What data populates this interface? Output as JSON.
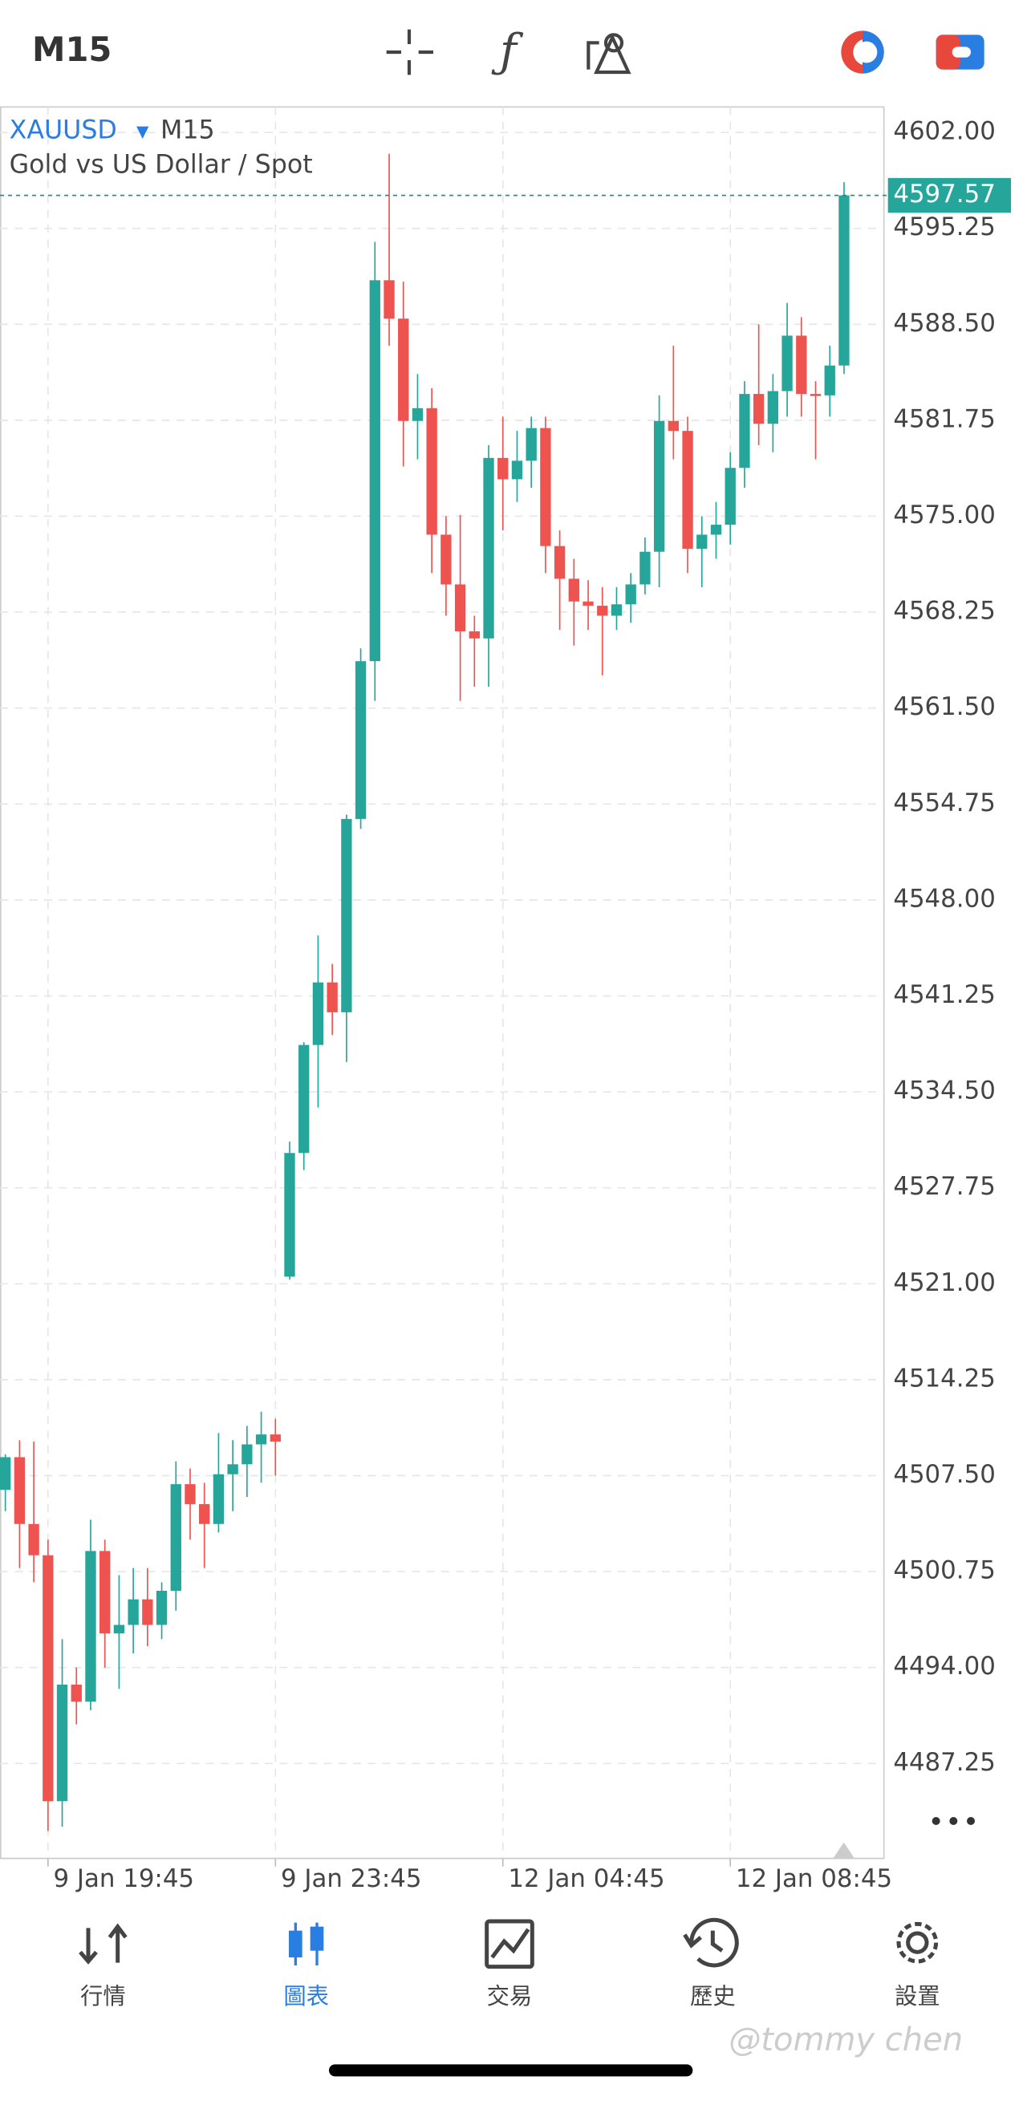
{
  "header": {
    "timeframe": "M15"
  },
  "chart_data": {
    "type": "candlestick",
    "title": "XAUUSD",
    "timeframe": "M15",
    "subtitle": "Gold vs US Dollar / Spot",
    "up_color": "#26a69a",
    "down_color": "#ef5350",
    "grid": true,
    "last_price": 4597.57,
    "ylim": [
      4480.57,
      4603.79
    ],
    "yticks": [
      {
        "value": 4602,
        "label": "4602.00"
      },
      {
        "value": 4595.25,
        "label": "4595.25"
      },
      {
        "value": 4588.5,
        "label": "4588.50"
      },
      {
        "value": 4581.75,
        "label": "4581.75"
      },
      {
        "value": 4575,
        "label": "4575.00"
      },
      {
        "value": 4568.25,
        "label": "4568.25"
      },
      {
        "value": 4561.5,
        "label": "4561.50"
      },
      {
        "value": 4554.75,
        "label": "4554.75"
      },
      {
        "value": 4548,
        "label": "4548.00"
      },
      {
        "value": 4541.25,
        "label": "4541.25"
      },
      {
        "value": 4534.5,
        "label": "4534.50"
      },
      {
        "value": 4527.75,
        "label": "4527.75"
      },
      {
        "value": 4521,
        "label": "4521.00"
      },
      {
        "value": 4514.25,
        "label": "4514.25"
      },
      {
        "value": 4507.5,
        "label": "4507.50"
      },
      {
        "value": 4500.75,
        "label": "4500.75"
      },
      {
        "value": 4494,
        "label": "4494.00"
      },
      {
        "value": 4487.25,
        "label": "4487.25"
      }
    ],
    "categories": [
      null,
      null,
      null,
      "9 Jan 19:45",
      null,
      null,
      null,
      null,
      null,
      null,
      null,
      null,
      null,
      null,
      null,
      null,
      null,
      null,
      null,
      "9 Jan 23:45",
      null,
      null,
      null,
      null,
      null,
      null,
      null,
      null,
      null,
      null,
      null,
      null,
      null,
      null,
      null,
      "12 Jan 04:45",
      null,
      null,
      null,
      null,
      null,
      null,
      null,
      null,
      null,
      null,
      null,
      null,
      null,
      null,
      null,
      "12 Jan 08:45",
      null,
      null,
      null,
      null,
      null,
      null,
      null,
      null
    ],
    "open": [
      4506.5,
      4508.8,
      4504.1,
      4501.9,
      4484.6,
      4492.8,
      4491.6,
      4502.2,
      4496.4,
      4497.0,
      4498.8,
      4497.0,
      4499.4,
      4506.9,
      4505.5,
      4504.1,
      4507.6,
      4508.3,
      4509.7,
      4510.4,
      4521.5,
      4530.2,
      4537.8,
      4542.2,
      4540.1,
      4553.7,
      4564.8,
      4591.6,
      4588.9,
      4581.7,
      4582.6,
      4573.7,
      4570.2,
      4566.9,
      4566.4,
      4579.1,
      4577.6,
      4578.9,
      4581.2,
      4572.9,
      4570.6,
      4569.0,
      4568.7,
      4568.0,
      4568.8,
      4570.2,
      4572.5,
      4581.7,
      4581.0,
      4572.7,
      4573.7,
      4574.4,
      4578.4,
      4583.6,
      4581.5,
      4583.8,
      4587.7,
      4583.6,
      4583.5,
      4585.6
    ],
    "high": [
      4509.0,
      4510.0,
      4509.9,
      4503.0,
      4496.0,
      4494.0,
      4504.4,
      4503.0,
      4500.5,
      4501.0,
      4501.0,
      4500.0,
      4508.5,
      4508.0,
      4507.0,
      4510.5,
      4510.0,
      4511.0,
      4512.0,
      4511.5,
      4531.0,
      4538.0,
      4545.5,
      4543.5,
      4554.0,
      4565.7,
      4594.3,
      4600.5,
      4591.5,
      4585.0,
      4584.0,
      4575.0,
      4575.1,
      4568.0,
      4580.0,
      4582.0,
      4581.0,
      4582.0,
      4582.0,
      4574.0,
      4572.0,
      4570.5,
      4570.0,
      4570.0,
      4571.0,
      4573.5,
      4583.5,
      4587.0,
      4582.0,
      4575.0,
      4576.0,
      4579.5,
      4584.5,
      4588.5,
      4585.0,
      4590.0,
      4589.0,
      4584.5,
      4587.0,
      4598.5
    ],
    "low": [
      4505.0,
      4501.0,
      4500.0,
      4482.5,
      4482.8,
      4490.0,
      4491.0,
      4494.0,
      4492.5,
      4495.0,
      4495.5,
      4496.0,
      4498.0,
      4503.0,
      4501.0,
      4503.5,
      4505.0,
      4506.0,
      4507.0,
      4507.5,
      4521.3,
      4529.0,
      4533.4,
      4538.5,
      4536.6,
      4553.0,
      4562.0,
      4587.0,
      4578.5,
      4579.0,
      4571.0,
      4568.0,
      4562.0,
      4563.0,
      4563.0,
      4574.0,
      4576.0,
      4577.0,
      4571.0,
      4567.0,
      4565.9,
      4567.0,
      4563.8,
      4567.0,
      4567.5,
      4569.5,
      4570.0,
      4579.0,
      4571.0,
      4570.0,
      4572.0,
      4573.0,
      4577.0,
      4580.0,
      4579.5,
      4582.0,
      4582.0,
      4579.0,
      4582.0,
      4585.0
    ],
    "close": [
      4508.8,
      4504.1,
      4501.9,
      4484.6,
      4492.8,
      4491.6,
      4502.2,
      4496.4,
      4497.0,
      4498.8,
      4497.0,
      4499.4,
      4506.9,
      4505.5,
      4504.1,
      4507.6,
      4508.3,
      4509.7,
      4510.4,
      4509.9,
      4530.2,
      4537.8,
      4542.2,
      4540.1,
      4553.7,
      4564.8,
      4591.6,
      4588.9,
      4581.7,
      4582.6,
      4573.7,
      4570.2,
      4566.9,
      4566.4,
      4579.1,
      4577.6,
      4578.9,
      4581.2,
      4572.9,
      4570.6,
      4569.0,
      4568.7,
      4568.0,
      4568.8,
      4570.2,
      4572.5,
      4581.7,
      4581.0,
      4572.7,
      4573.7,
      4574.4,
      4578.4,
      4583.6,
      4581.5,
      4583.8,
      4587.7,
      4583.6,
      4583.5,
      4585.6,
      4597.57
    ]
  },
  "tab_bar": {
    "items": [
      "行情",
      "圖表",
      "交易",
      "歷史",
      "設置"
    ],
    "active": 1
  },
  "watermark": "@tommy chen"
}
